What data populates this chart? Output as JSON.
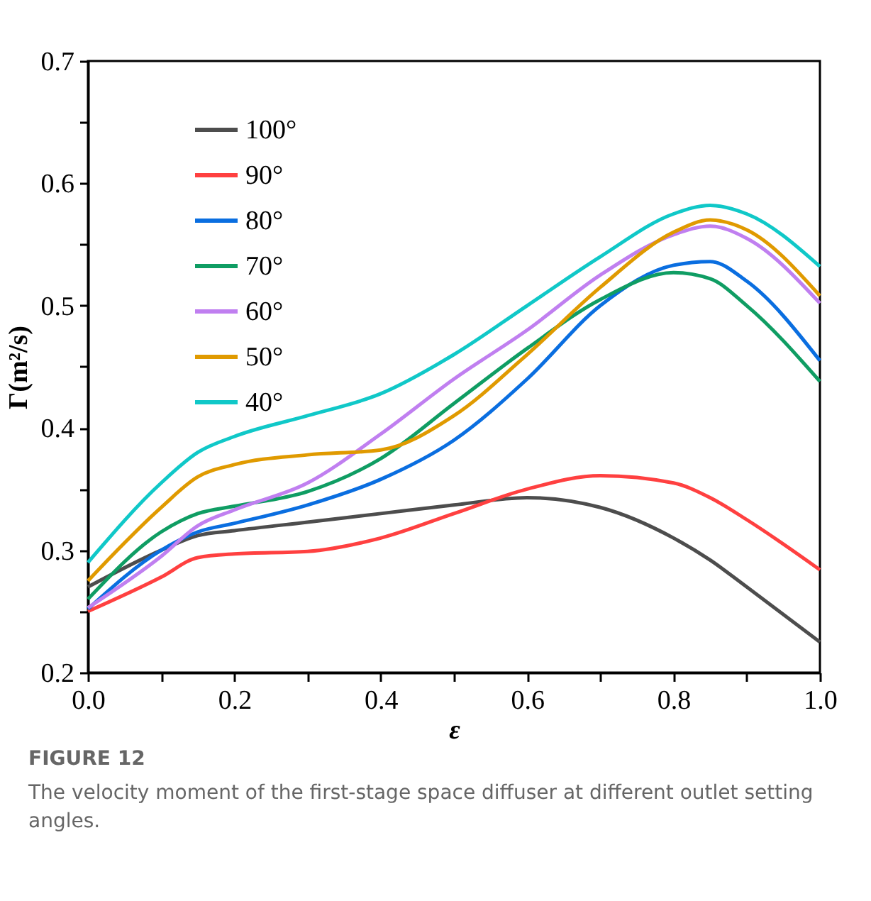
{
  "chart_data": {
    "type": "line",
    "xlabel": "ε",
    "ylabel": "Γ(m²/s)",
    "x": [
      0,
      0.1,
      0.15,
      0.2,
      0.3,
      0.4,
      0.5,
      0.6,
      0.7,
      0.8,
      0.85,
      0.9,
      1.0
    ],
    "series": [
      {
        "name": "100°",
        "color": "#4d4d4d",
        "values": [
          0.27,
          0.3,
          0.312,
          0.316,
          0.323,
          0.33,
          0.337,
          0.343,
          0.335,
          0.31,
          0.292,
          0.27,
          0.225
        ]
      },
      {
        "name": "90°",
        "color": "#ff4040",
        "values": [
          0.25,
          0.278,
          0.294,
          0.297,
          0.299,
          0.31,
          0.33,
          0.35,
          0.361,
          0.355,
          0.343,
          0.325,
          0.284
        ]
      },
      {
        "name": "80°",
        "color": "#0a6ee0",
        "values": [
          0.252,
          0.3,
          0.315,
          0.322,
          0.337,
          0.358,
          0.39,
          0.44,
          0.5,
          0.533,
          0.536,
          0.52,
          0.455
        ]
      },
      {
        "name": "70°",
        "color": "#0f9d63",
        "values": [
          0.26,
          0.315,
          0.33,
          0.336,
          0.348,
          0.375,
          0.42,
          0.465,
          0.505,
          0.527,
          0.522,
          0.5,
          0.438
        ]
      },
      {
        "name": "60°",
        "color": "#c07ff0",
        "values": [
          0.253,
          0.295,
          0.32,
          0.333,
          0.355,
          0.395,
          0.44,
          0.48,
          0.525,
          0.558,
          0.565,
          0.555,
          0.502
        ]
      },
      {
        "name": "50°",
        "color": "#e09a00",
        "values": [
          0.275,
          0.335,
          0.36,
          0.37,
          0.378,
          0.382,
          0.41,
          0.46,
          0.515,
          0.56,
          0.57,
          0.562,
          0.508
        ]
      },
      {
        "name": "40°",
        "color": "#10c8c8",
        "values": [
          0.29,
          0.355,
          0.38,
          0.393,
          0.41,
          0.428,
          0.46,
          0.5,
          0.54,
          0.575,
          0.582,
          0.575,
          0.532
        ]
      }
    ],
    "xlim": [
      0,
      1.0
    ],
    "ylim": [
      0.2,
      0.7
    ],
    "xticks": [
      {
        "value": 0,
        "label": "0.0"
      },
      {
        "value": 0.1,
        "label": null
      },
      0.2,
      {
        "value": 0.3,
        "label": null
      },
      0.4,
      {
        "value": 0.5,
        "label": null
      },
      0.6,
      {
        "value": 0.7,
        "label": null
      },
      0.8,
      {
        "value": 0.9,
        "label": null
      },
      {
        "value": 1.0,
        "label": "1.0"
      }
    ],
    "yticks": [
      0.2,
      {
        "value": 0.25,
        "label": null
      },
      0.3,
      {
        "value": 0.35,
        "label": null
      },
      0.4,
      {
        "value": 0.45,
        "label": null
      },
      0.5,
      {
        "value": 0.55,
        "label": null
      },
      0.6,
      {
        "value": 0.65,
        "label": null
      },
      0.7
    ],
    "legend": "top left",
    "grid": false,
    "annotations": [
      "FIGURE 12",
      "The velocity moment of the first-stage space diffuser at different outlet setting angles."
    ]
  }
}
